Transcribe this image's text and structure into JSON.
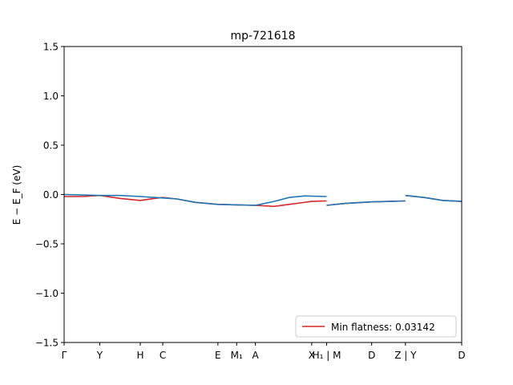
{
  "chart_data": {
    "type": "line",
    "title": "mp-721618",
    "ylabel": "E − E_F (eV)",
    "ylim": [
      -1.5,
      1.5
    ],
    "xlim": [
      0,
      10.6
    ],
    "yticks": [
      {
        "value": 1.5,
        "label": "1.5"
      },
      {
        "value": 1.0,
        "label": "1.0"
      },
      {
        "value": 0.5,
        "label": "0.5"
      },
      {
        "value": 0.0,
        "label": "0.0"
      },
      {
        "value": -0.5,
        "label": "−0.5"
      },
      {
        "value": -1.0,
        "label": "−1.0"
      },
      {
        "value": -1.5,
        "label": "−1.5"
      }
    ],
    "xticks": [
      {
        "value": 0.0,
        "label": "Γ"
      },
      {
        "value": 0.95,
        "label": "Y"
      },
      {
        "value": 2.03,
        "label": "H"
      },
      {
        "value": 2.63,
        "label": "C"
      },
      {
        "value": 4.1,
        "label": "E"
      },
      {
        "value": 4.6,
        "label": "M₁"
      },
      {
        "value": 5.1,
        "label": "A"
      },
      {
        "value": 6.6,
        "label": "X"
      },
      {
        "value": 7.0,
        "label": "H₁ | M"
      },
      {
        "value": 8.2,
        "label": "D"
      },
      {
        "value": 9.1,
        "label": "Z | Y"
      },
      {
        "value": 10.6,
        "label": "D"
      }
    ],
    "grid": false,
    "legend_position": "lower-right",
    "series": [
      {
        "name": "Min flatness: 0.03142",
        "color": "#d62728",
        "segments": [
          [
            [
              0,
              -0.02
            ],
            [
              0.5,
              -0.02
            ],
            [
              0.95,
              -0.01
            ],
            [
              1.5,
              -0.04
            ],
            [
              2.03,
              -0.06
            ],
            [
              2.4,
              -0.04
            ],
            [
              2.63,
              -0.03
            ],
            [
              3.0,
              -0.045
            ],
            [
              3.5,
              -0.08
            ],
            [
              4.1,
              -0.1
            ],
            [
              4.6,
              -0.105
            ],
            [
              5.1,
              -0.11
            ],
            [
              5.6,
              -0.12
            ],
            [
              6.0,
              -0.1
            ],
            [
              6.6,
              -0.07
            ],
            [
              7.0,
              -0.065
            ]
          ],
          [
            [
              7.0,
              -0.11
            ],
            [
              7.5,
              -0.09
            ],
            [
              8.2,
              -0.075
            ],
            [
              8.7,
              -0.07
            ],
            [
              9.1,
              -0.065
            ]
          ],
          [
            [
              9.1,
              -0.01
            ],
            [
              9.6,
              -0.03
            ],
            [
              10.1,
              -0.06
            ],
            [
              10.6,
              -0.07
            ]
          ]
        ]
      },
      {
        "name": "",
        "color": "#1f77b4",
        "segments": [
          [
            [
              0,
              0.0
            ],
            [
              0.5,
              -0.005
            ],
            [
              0.95,
              -0.01
            ],
            [
              1.5,
              -0.01
            ],
            [
              2.03,
              -0.02
            ],
            [
              2.4,
              -0.03
            ],
            [
              2.63,
              -0.035
            ],
            [
              3.0,
              -0.045
            ],
            [
              3.5,
              -0.08
            ],
            [
              4.1,
              -0.1
            ],
            [
              4.6,
              -0.105
            ],
            [
              5.1,
              -0.11
            ],
            [
              5.6,
              -0.07
            ],
            [
              6.0,
              -0.03
            ],
            [
              6.4,
              -0.015
            ],
            [
              7.0,
              -0.02
            ]
          ],
          [
            [
              7.0,
              -0.11
            ],
            [
              7.5,
              -0.09
            ],
            [
              8.2,
              -0.075
            ],
            [
              8.7,
              -0.07
            ],
            [
              9.1,
              -0.065
            ]
          ],
          [
            [
              9.1,
              -0.01
            ],
            [
              9.6,
              -0.03
            ],
            [
              10.1,
              -0.06
            ],
            [
              10.6,
              -0.07
            ]
          ]
        ]
      }
    ]
  }
}
